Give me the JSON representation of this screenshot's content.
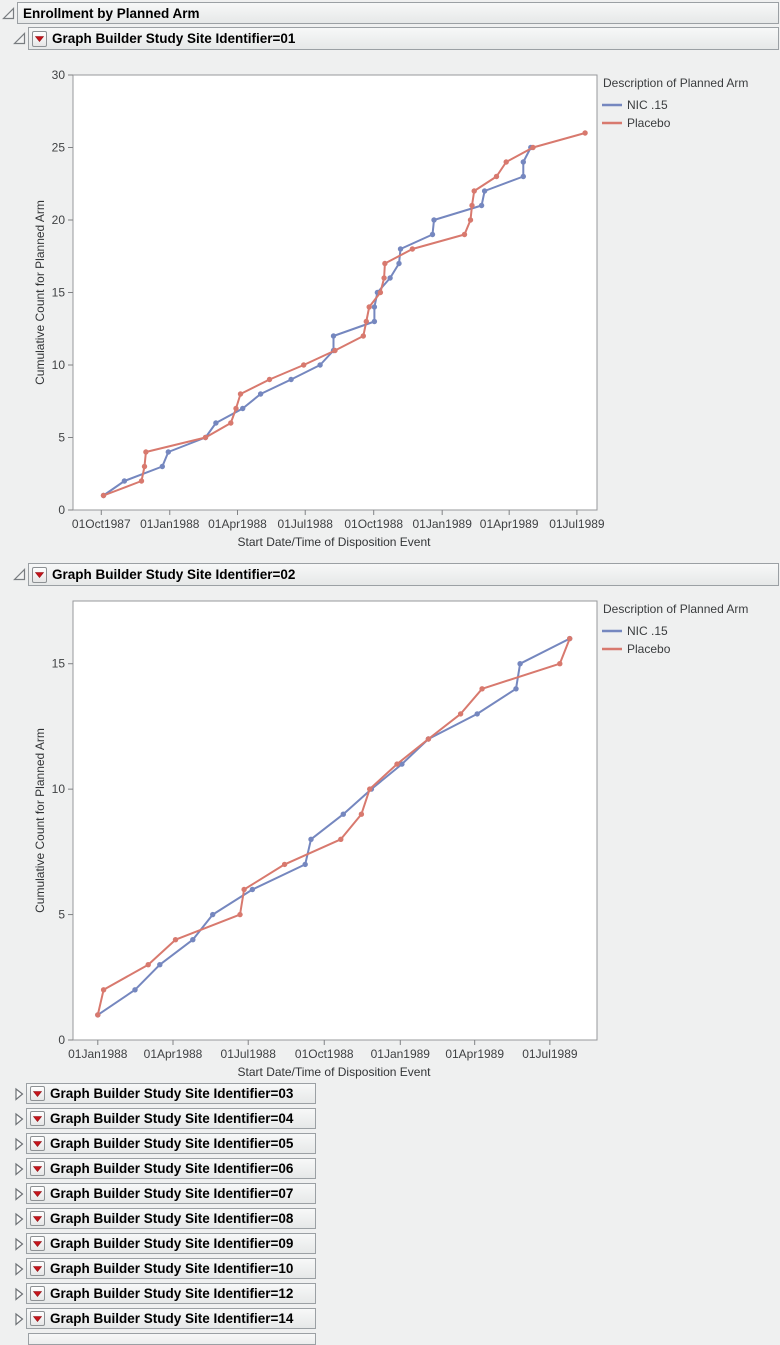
{
  "app": {
    "background": "#eff0f0"
  },
  "outline": {
    "root": {
      "title": "Enrollment by Planned Arm",
      "expanded": true
    },
    "expanded": [
      {
        "title": "Graph Builder Study Site Identifier=01"
      },
      {
        "title": "Graph Builder Study Site Identifier=02"
      }
    ],
    "collapsed": [
      {
        "title": "Graph Builder Study Site Identifier=03"
      },
      {
        "title": "Graph Builder Study Site Identifier=04"
      },
      {
        "title": "Graph Builder Study Site Identifier=05"
      },
      {
        "title": "Graph Builder Study Site Identifier=06"
      },
      {
        "title": "Graph Builder Study Site Identifier=07"
      },
      {
        "title": "Graph Builder Study Site Identifier=08"
      },
      {
        "title": "Graph Builder Study Site Identifier=09"
      },
      {
        "title": "Graph Builder Study Site Identifier=10"
      },
      {
        "title": "Graph Builder Study Site Identifier=12"
      },
      {
        "title": "Graph Builder Study Site Identifier=14"
      }
    ]
  },
  "colors": {
    "nic15": "#7587bf",
    "placebo": "#d8796e",
    "frame": "#97999b",
    "tick": "#808285",
    "hotspot_red": "#c6131a"
  },
  "chart_data": [
    {
      "type": "line",
      "panel": "Study Site Identifier=01",
      "xlabel": "Start Date/Time of Disposition Event",
      "ylabel": "Cumulative Count for Planned Arm",
      "legend_title": "Description of Planned Arm",
      "ylim": [
        0,
        30
      ],
      "yticks": [
        0,
        5,
        10,
        15,
        20,
        25,
        30
      ],
      "x_domain": [
        "1987-08-24",
        "1989-07-28"
      ],
      "xticks": [
        {
          "date": "1987-10-01",
          "label": "01Oct1987"
        },
        {
          "date": "1988-01-01",
          "label": "01Jan1988"
        },
        {
          "date": "1988-04-01",
          "label": "01Apr1988"
        },
        {
          "date": "1988-07-01",
          "label": "01Jul1988"
        },
        {
          "date": "1988-10-01",
          "label": "01Oct1988"
        },
        {
          "date": "1989-01-01",
          "label": "01Jan1989"
        },
        {
          "date": "1989-04-01",
          "label": "01Apr1989"
        },
        {
          "date": "1989-07-01",
          "label": "01Jul1989"
        }
      ],
      "series": [
        {
          "name": "NIC .15",
          "color": "#7587bf",
          "points": [
            [
              "1987-10-04",
              1
            ],
            [
              "1987-11-01",
              2
            ],
            [
              "1987-12-22",
              3
            ],
            [
              "1987-12-30",
              4
            ],
            [
              "1988-02-18",
              5
            ],
            [
              "1988-03-03",
              6
            ],
            [
              "1988-04-08",
              7
            ],
            [
              "1988-05-02",
              8
            ],
            [
              "1988-06-12",
              9
            ],
            [
              "1988-07-21",
              10
            ],
            [
              "1988-08-08",
              11
            ],
            [
              "1988-08-08",
              12
            ],
            [
              "1988-10-02",
              13
            ],
            [
              "1988-10-02",
              14
            ],
            [
              "1988-10-06",
              15
            ],
            [
              "1988-10-23",
              16
            ],
            [
              "1988-11-04",
              17
            ],
            [
              "1988-11-06",
              18
            ],
            [
              "1988-12-19",
              19
            ],
            [
              "1988-12-21",
              20
            ],
            [
              "1989-02-23",
              21
            ],
            [
              "1989-02-27",
              22
            ],
            [
              "1989-04-20",
              23
            ],
            [
              "1989-04-20",
              24
            ],
            [
              "1989-04-30",
              25
            ]
          ]
        },
        {
          "name": "Placebo",
          "color": "#d8796e",
          "points": [
            [
              "1987-10-04",
              1
            ],
            [
              "1987-11-24",
              2
            ],
            [
              "1987-11-28",
              3
            ],
            [
              "1987-11-30",
              4
            ],
            [
              "1988-02-18",
              5
            ],
            [
              "1988-03-23",
              6
            ],
            [
              "1988-03-30",
              7
            ],
            [
              "1988-04-05",
              8
            ],
            [
              "1988-05-14",
              9
            ],
            [
              "1988-06-29",
              10
            ],
            [
              "1988-08-10",
              11
            ],
            [
              "1988-09-17",
              12
            ],
            [
              "1988-09-21",
              13
            ],
            [
              "1988-09-25",
              14
            ],
            [
              "1988-10-10",
              15
            ],
            [
              "1988-10-15",
              16
            ],
            [
              "1988-10-16",
              17
            ],
            [
              "1988-11-22",
              18
            ],
            [
              "1989-01-31",
              19
            ],
            [
              "1989-02-08",
              20
            ],
            [
              "1989-02-10",
              21
            ],
            [
              "1989-02-13",
              22
            ],
            [
              "1989-03-15",
              23
            ],
            [
              "1989-03-28",
              24
            ],
            [
              "1989-05-03",
              25
            ],
            [
              "1989-07-12",
              26
            ]
          ]
        }
      ]
    },
    {
      "type": "line",
      "panel": "Study Site Identifier=02",
      "xlabel": "Start Date/Time of Disposition Event",
      "ylabel": "Cumulative Count for Planned Arm",
      "legend_title": "Description of Planned Arm",
      "ylim": [
        0,
        17.5
      ],
      "yticks": [
        0,
        5,
        10,
        15
      ],
      "x_domain": [
        "1987-12-02",
        "1989-08-27"
      ],
      "xticks": [
        {
          "date": "1988-01-01",
          "label": "01Jan1988"
        },
        {
          "date": "1988-04-01",
          "label": "01Apr1988"
        },
        {
          "date": "1988-07-01",
          "label": "01Jul1988"
        },
        {
          "date": "1988-10-01",
          "label": "01Oct1988"
        },
        {
          "date": "1989-01-01",
          "label": "01Jan1989"
        },
        {
          "date": "1989-04-01",
          "label": "01Apr1989"
        },
        {
          "date": "1989-07-01",
          "label": "01Jul1989"
        }
      ],
      "series": [
        {
          "name": "NIC .15",
          "color": "#7587bf",
          "points": [
            [
              "1988-01-01",
              1
            ],
            [
              "1988-02-15",
              2
            ],
            [
              "1988-03-16",
              3
            ],
            [
              "1988-04-25",
              4
            ],
            [
              "1988-05-19",
              5
            ],
            [
              "1988-07-06",
              6
            ],
            [
              "1988-09-08",
              7
            ],
            [
              "1988-09-15",
              8
            ],
            [
              "1988-10-24",
              9
            ],
            [
              "1988-11-27",
              10
            ],
            [
              "1989-01-03",
              11
            ],
            [
              "1989-02-04",
              12
            ],
            [
              "1989-04-04",
              13
            ],
            [
              "1989-05-21",
              14
            ],
            [
              "1989-05-26",
              15
            ],
            [
              "1989-07-25",
              16
            ]
          ]
        },
        {
          "name": "Placebo",
          "color": "#d8796e",
          "points": [
            [
              "1988-01-01",
              1
            ],
            [
              "1988-01-08",
              2
            ],
            [
              "1988-03-02",
              3
            ],
            [
              "1988-04-04",
              4
            ],
            [
              "1988-06-21",
              5
            ],
            [
              "1988-06-26",
              6
            ],
            [
              "1988-08-14",
              7
            ],
            [
              "1988-10-21",
              8
            ],
            [
              "1988-11-15",
              9
            ],
            [
              "1988-11-25",
              10
            ],
            [
              "1988-12-28",
              11
            ],
            [
              "1989-02-04",
              12
            ],
            [
              "1989-03-15",
              13
            ],
            [
              "1989-04-10",
              14
            ],
            [
              "1989-07-13",
              15
            ],
            [
              "1989-07-25",
              16
            ]
          ]
        }
      ]
    }
  ]
}
